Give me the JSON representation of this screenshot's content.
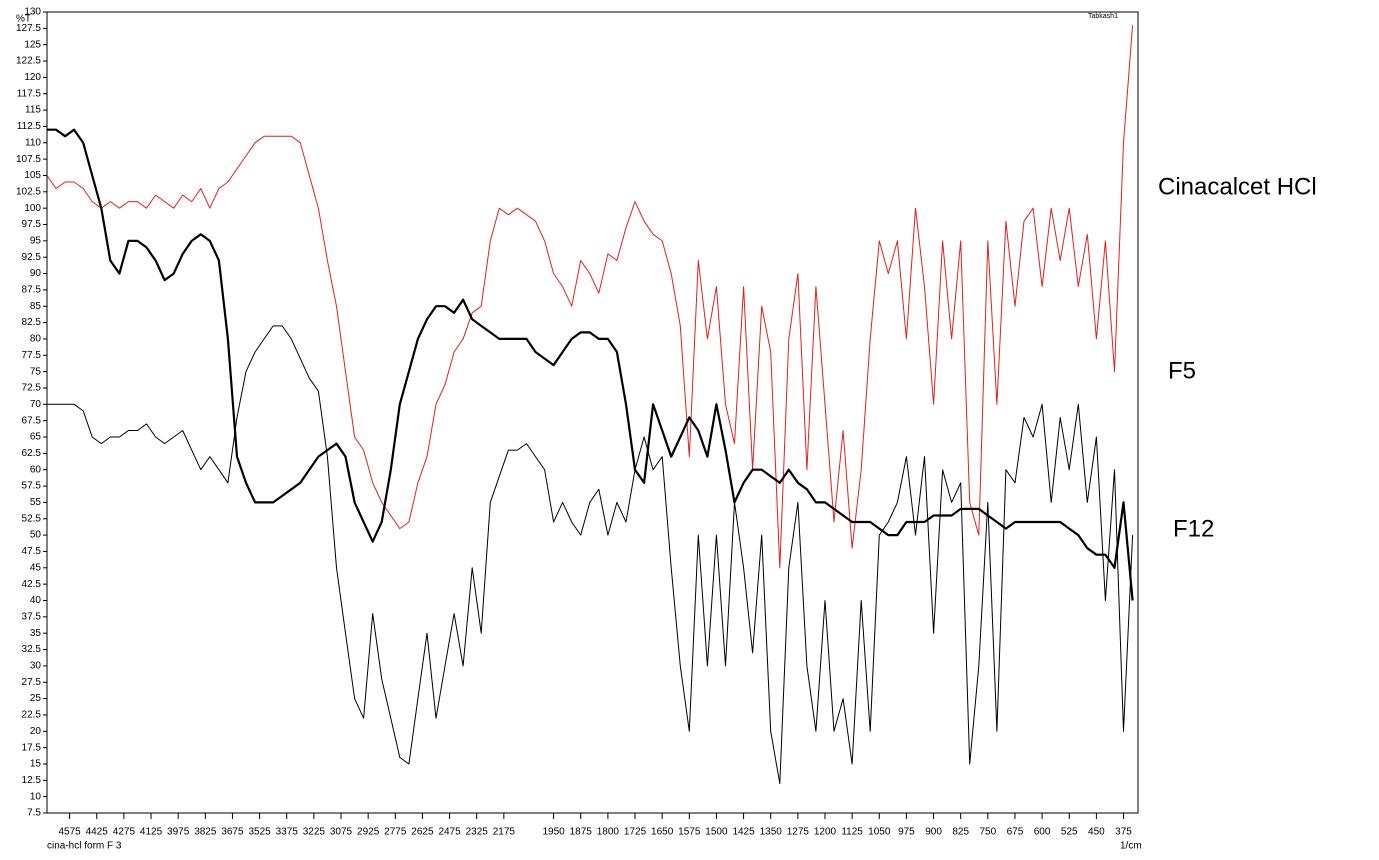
{
  "chart_data": {
    "type": "line",
    "y_label": "%T",
    "x_label": "1/cm",
    "footer": "cina-hcl form F 3",
    "tag": "Tabkash1",
    "xlim": [
      4700,
      335
    ],
    "x_scale_break": 2000,
    "x_scale_factor": 2,
    "ylim": [
      7.5,
      130
    ],
    "yticks": [
      7.5,
      10,
      12.5,
      15,
      17.5,
      20,
      22.5,
      25,
      27.5,
      30,
      32.5,
      35,
      37.5,
      40,
      42.5,
      45,
      47.5,
      50,
      52.5,
      55,
      57.5,
      60,
      62.5,
      65,
      67.5,
      70,
      72.5,
      75,
      77.5,
      80,
      82.5,
      85,
      87.5,
      90,
      92.5,
      95,
      97.5,
      100,
      102.5,
      105,
      107.5,
      110,
      112.5,
      115,
      117.5,
      120,
      122.5,
      125,
      127.5,
      130
    ],
    "xticks": [
      4575,
      4425,
      4275,
      4125,
      3975,
      3825,
      3675,
      3525,
      3375,
      3225,
      3075,
      2925,
      2775,
      2625,
      2475,
      2325,
      2175,
      1950,
      1875,
      1800,
      1725,
      1650,
      1575,
      1500,
      1425,
      1350,
      1275,
      1200,
      1125,
      1050,
      975,
      900,
      825,
      750,
      675,
      600,
      525,
      450,
      375
    ],
    "x": [
      4700,
      4650,
      4600,
      4550,
      4500,
      4450,
      4400,
      4350,
      4300,
      4250,
      4200,
      4150,
      4100,
      4050,
      4000,
      3950,
      3900,
      3850,
      3800,
      3750,
      3700,
      3650,
      3600,
      3550,
      3500,
      3450,
      3400,
      3350,
      3300,
      3250,
      3200,
      3150,
      3100,
      3050,
      3000,
      2950,
      2900,
      2850,
      2800,
      2750,
      2700,
      2650,
      2600,
      2550,
      2500,
      2450,
      2400,
      2350,
      2300,
      2250,
      2200,
      2150,
      2100,
      2050,
      2000,
      1975,
      1950,
      1925,
      1900,
      1875,
      1850,
      1825,
      1800,
      1775,
      1750,
      1725,
      1700,
      1675,
      1650,
      1625,
      1600,
      1575,
      1550,
      1525,
      1500,
      1475,
      1450,
      1425,
      1400,
      1375,
      1350,
      1325,
      1300,
      1275,
      1250,
      1225,
      1200,
      1175,
      1150,
      1125,
      1100,
      1075,
      1050,
      1025,
      1000,
      975,
      950,
      925,
      900,
      875,
      850,
      825,
      800,
      775,
      750,
      725,
      700,
      675,
      650,
      625,
      600,
      575,
      550,
      525,
      500,
      475,
      450,
      425,
      400,
      375,
      350
    ],
    "series": [
      {
        "name": "Cinacalcet HCl",
        "color": "#e02020",
        "width": 1,
        "values": [
          105,
          103,
          104,
          104,
          103,
          101,
          100,
          101,
          100,
          101,
          101,
          100,
          102,
          101,
          100,
          102,
          101,
          103,
          100,
          103,
          104,
          106,
          108,
          110,
          111,
          111,
          111,
          111,
          110,
          105,
          100,
          92,
          85,
          75,
          65,
          63,
          58,
          55,
          53,
          51,
          52,
          58,
          62,
          70,
          73,
          78,
          80,
          84,
          85,
          95,
          100,
          99,
          100,
          99,
          98,
          95,
          90,
          88,
          85,
          92,
          90,
          87,
          93,
          92,
          97,
          101,
          98,
          96,
          95,
          90,
          82,
          62,
          92,
          80,
          88,
          70,
          64,
          88,
          60,
          85,
          78,
          45,
          80,
          90,
          60,
          88,
          70,
          52,
          66,
          48,
          60,
          80,
          95,
          90,
          95,
          80,
          100,
          88,
          70,
          95,
          80,
          95,
          55,
          50,
          95,
          70,
          98,
          85,
          98,
          100,
          88,
          100,
          92,
          100,
          88,
          96,
          80,
          95,
          75,
          110,
          128
        ]
      },
      {
        "name": "F5",
        "color": "#000000",
        "width": 1,
        "values": [
          70,
          70,
          70,
          70,
          69,
          65,
          64,
          65,
          65,
          66,
          66,
          67,
          65,
          64,
          65,
          66,
          63,
          60,
          62,
          60,
          58,
          68,
          75,
          78,
          80,
          82,
          82,
          80,
          77,
          74,
          72,
          62,
          45,
          35,
          25,
          22,
          38,
          28,
          22,
          16,
          15,
          25,
          35,
          22,
          30,
          38,
          30,
          45,
          35,
          55,
          59,
          63,
          63,
          64,
          62,
          60,
          52,
          55,
          52,
          50,
          55,
          57,
          50,
          55,
          52,
          60,
          65,
          60,
          62,
          45,
          30,
          20,
          50,
          30,
          50,
          30,
          55,
          45,
          32,
          50,
          20,
          12,
          45,
          55,
          30,
          20,
          40,
          20,
          25,
          15,
          40,
          20,
          50,
          52,
          55,
          62,
          50,
          62,
          35,
          60,
          55,
          58,
          15,
          30,
          55,
          20,
          60,
          58,
          68,
          65,
          70,
          55,
          68,
          60,
          70,
          55,
          65,
          40,
          60,
          20,
          50
        ]
      },
      {
        "name": "F12",
        "color": "#000000",
        "width": 2.2,
        "values": [
          112,
          112,
          111,
          112,
          110,
          105,
          100,
          92,
          90,
          95,
          95,
          94,
          92,
          89,
          90,
          93,
          95,
          96,
          95,
          92,
          80,
          62,
          58,
          55,
          55,
          55,
          56,
          57,
          58,
          60,
          62,
          63,
          64,
          62,
          55,
          52,
          49,
          52,
          60,
          70,
          75,
          80,
          83,
          85,
          85,
          84,
          86,
          83,
          82,
          81,
          80,
          80,
          80,
          80,
          78,
          77,
          76,
          78,
          80,
          81,
          81,
          80,
          80,
          78,
          70,
          60,
          58,
          70,
          66,
          62,
          65,
          68,
          66,
          62,
          70,
          63,
          55,
          58,
          60,
          60,
          59,
          58,
          60,
          58,
          57,
          55,
          55,
          54,
          53,
          52,
          52,
          52,
          51,
          50,
          50,
          52,
          52,
          52,
          53,
          53,
          53,
          54,
          54,
          54,
          53,
          52,
          51,
          52,
          52,
          52,
          52,
          52,
          52,
          51,
          50,
          48,
          47,
          47,
          45,
          55,
          40
        ]
      }
    ]
  }
}
